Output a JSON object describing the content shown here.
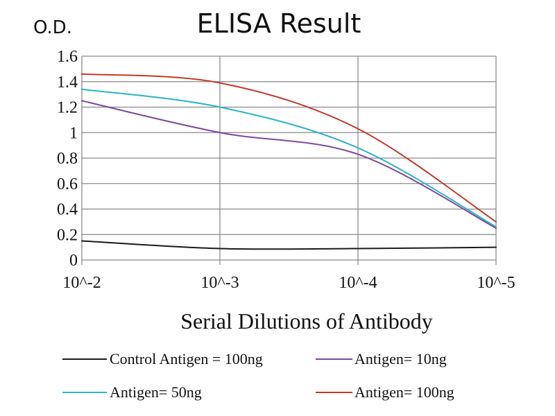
{
  "chart_data": {
    "type": "line",
    "title": "ELISA Result",
    "ylabel": "O.D.",
    "xlabel": "Serial Dilutions  of Antibody",
    "categories": [
      "10^-2",
      "10^-3",
      "10^-4",
      "10^-5"
    ],
    "ylim": [
      0,
      1.6
    ],
    "yticks": [
      0,
      0.2,
      0.4,
      0.6,
      0.8,
      1,
      1.2,
      1.4,
      1.6
    ],
    "ytick_labels": [
      "0",
      "0.2",
      "0.4",
      "0.6",
      "0.8",
      "1",
      "1.2",
      "1.4",
      "1.6"
    ],
    "grid": true,
    "legend_position": "bottom",
    "series": [
      {
        "name": "Control Antigen = 100ng",
        "color": "#1a1a1a",
        "values": [
          0.15,
          0.09,
          0.09,
          0.1
        ]
      },
      {
        "name": "Antigen= 10ng",
        "color": "#7a4a9e",
        "values": [
          1.25,
          1.0,
          0.83,
          0.25
        ]
      },
      {
        "name": "Antigen= 50ng",
        "color": "#2bb3c9",
        "values": [
          1.34,
          1.2,
          0.88,
          0.26
        ]
      },
      {
        "name": "Antigen= 100ng",
        "color": "#c23a2b",
        "values": [
          1.46,
          1.39,
          1.03,
          0.3
        ]
      }
    ]
  }
}
